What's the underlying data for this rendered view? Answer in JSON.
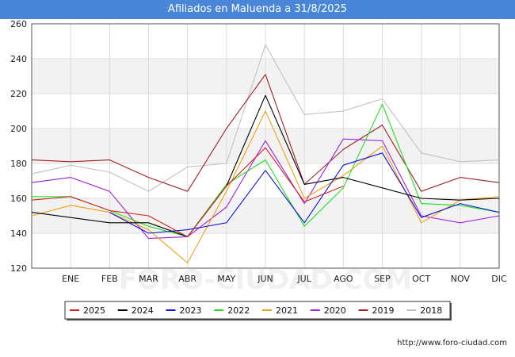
{
  "chart_data": {
    "type": "line",
    "title": "Afiliados en Maluenda a 31/8/2025",
    "categories": [
      "",
      "ENE",
      "FEB",
      "MAR",
      "ABR",
      "MAY",
      "JUN",
      "JUL",
      "AGO",
      "SEP",
      "OCT",
      "NOV",
      "DIC"
    ],
    "ylim": [
      120,
      260
    ],
    "yticks": [
      120,
      140,
      160,
      180,
      200,
      220,
      240,
      260
    ],
    "grid": true,
    "legend_position": "bottom",
    "watermark": "FORO-CIUDAD.COM",
    "series": [
      {
        "name": "2025",
        "color": "#d62020",
        "values": [
          159,
          161,
          153,
          150,
          138,
          167,
          189,
          158,
          167,
          null,
          null,
          null,
          null
        ]
      },
      {
        "name": "2024",
        "color": "#000000",
        "values": [
          152,
          149,
          146,
          146,
          138,
          167,
          219,
          168,
          172,
          166,
          160,
          159,
          160
        ]
      },
      {
        "name": "2023",
        "color": "#1010e0",
        "values": [
          152,
          null,
          152,
          140,
          142,
          146,
          176,
          146,
          179,
          186,
          149,
          157,
          152
        ]
      },
      {
        "name": "2022",
        "color": "#20e020",
        "values": [
          161,
          161,
          153,
          144,
          138,
          168,
          182,
          144,
          166,
          214,
          157,
          156,
          152
        ]
      },
      {
        "name": "2021",
        "color": "#f0a010",
        "values": [
          150,
          156,
          152,
          142,
          123,
          164,
          210,
          160,
          173,
          190,
          146,
          159,
          161
        ]
      },
      {
        "name": "2020",
        "color": "#a020e0",
        "values": [
          169,
          172,
          164,
          137,
          138,
          155,
          193,
          157,
          194,
          193,
          150,
          146,
          150
        ]
      },
      {
        "name": "2019",
        "color": "#a02020",
        "values": [
          182,
          181,
          182,
          172,
          164,
          200,
          231,
          168,
          188,
          202,
          164,
          172,
          169
        ]
      },
      {
        "name": "2018",
        "color": "#c0c0c0",
        "values": [
          174,
          179,
          175,
          164,
          178,
          180,
          248,
          208,
          210,
          217,
          186,
          181,
          182
        ]
      }
    ]
  },
  "footer": {
    "url": "http://www.foro-ciudad.com"
  }
}
